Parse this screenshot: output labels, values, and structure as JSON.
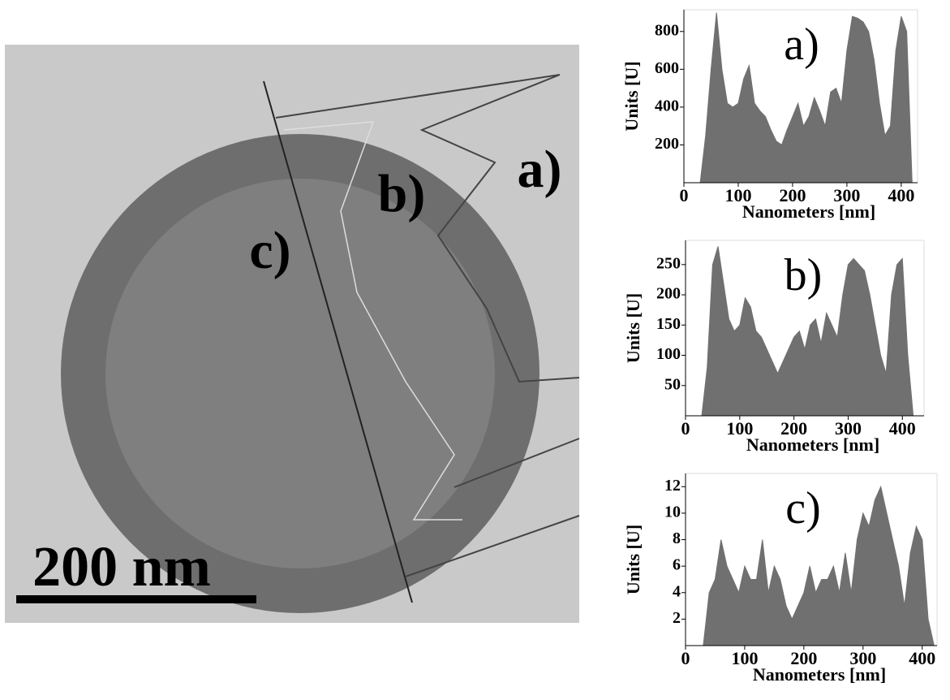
{
  "image": {
    "scale_bar": "200 nm",
    "labels": [
      "a)",
      "b)",
      "c)"
    ]
  },
  "chart_data": [
    {
      "type": "area",
      "annotation": "a)",
      "xlabel": "Nanometers [nm]",
      "ylabel": "Units [U]",
      "color": "#707070",
      "x": [
        30,
        40,
        50,
        60,
        70,
        80,
        90,
        100,
        110,
        120,
        130,
        140,
        150,
        160,
        170,
        180,
        190,
        200,
        210,
        220,
        230,
        240,
        250,
        260,
        270,
        280,
        290,
        300,
        310,
        320,
        330,
        340,
        350,
        360,
        370,
        380,
        390,
        400,
        410,
        420
      ],
      "values": [
        0,
        250,
        600,
        900,
        600,
        420,
        400,
        420,
        550,
        620,
        420,
        380,
        350,
        280,
        220,
        200,
        280,
        350,
        420,
        300,
        350,
        450,
        380,
        300,
        480,
        500,
        420,
        700,
        880,
        870,
        850,
        800,
        650,
        420,
        250,
        300,
        700,
        880,
        800,
        0
      ],
      "xlim": [
        0,
        430
      ],
      "ylim": [
        0,
        915
      ],
      "xticks": [
        0,
        100,
        200,
        300,
        400
      ],
      "yticks": [
        200,
        400,
        600,
        800
      ]
    },
    {
      "type": "area",
      "annotation": "b)",
      "xlabel": "Nanometers [nm]",
      "ylabel": "Units [U]",
      "color": "#707070",
      "x": [
        30,
        40,
        50,
        60,
        70,
        80,
        90,
        100,
        110,
        120,
        130,
        140,
        150,
        160,
        170,
        180,
        190,
        200,
        210,
        220,
        230,
        240,
        250,
        260,
        270,
        280,
        290,
        300,
        310,
        320,
        330,
        340,
        350,
        360,
        370,
        380,
        390,
        400,
        410,
        420
      ],
      "values": [
        0,
        80,
        250,
        280,
        220,
        160,
        140,
        150,
        195,
        180,
        140,
        130,
        110,
        90,
        70,
        90,
        110,
        130,
        140,
        110,
        150,
        160,
        120,
        170,
        150,
        130,
        200,
        250,
        260,
        250,
        240,
        200,
        150,
        100,
        70,
        200,
        250,
        260,
        100,
        0
      ],
      "xlim": [
        0,
        440
      ],
      "ylim": [
        0,
        290
      ],
      "xticks": [
        0,
        100,
        200,
        300,
        400
      ],
      "yticks": [
        50,
        100,
        150,
        200,
        250
      ]
    },
    {
      "type": "area",
      "annotation": "c)",
      "xlabel": "Nanometers [nm]",
      "ylabel": "Units [U]",
      "color": "#707070",
      "x": [
        30,
        40,
        50,
        60,
        70,
        80,
        90,
        100,
        110,
        120,
        130,
        140,
        150,
        160,
        170,
        180,
        190,
        200,
        210,
        220,
        230,
        240,
        250,
        260,
        270,
        280,
        290,
        300,
        310,
        320,
        330,
        340,
        350,
        360,
        370,
        380,
        390,
        400,
        410,
        420
      ],
      "values": [
        0,
        4,
        5,
        8,
        6,
        5,
        4,
        6,
        5,
        5,
        8,
        4,
        6,
        5,
        3,
        2,
        3,
        4,
        6,
        4,
        5,
        5,
        6,
        4,
        7,
        4,
        8,
        10,
        9,
        11,
        12,
        10,
        8,
        6,
        3,
        7,
        9,
        8,
        2,
        0
      ],
      "xlim": [
        0,
        425
      ],
      "ylim": [
        0,
        13
      ],
      "xticks": [
        0,
        100,
        200,
        300,
        400
      ],
      "yticks": [
        2,
        4,
        6,
        8,
        10,
        12
      ]
    }
  ]
}
